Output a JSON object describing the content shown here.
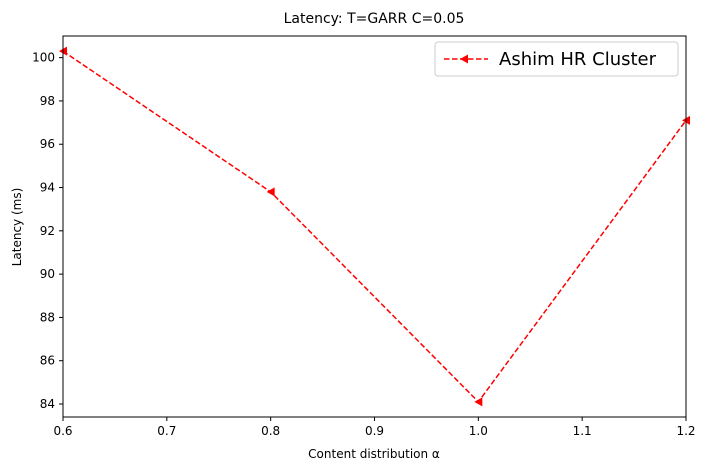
{
  "chart_data": {
    "type": "line",
    "title": "Latency: T=GARR C=0.05",
    "xlabel": "Content distribution α",
    "ylabel": "Latency (ms)",
    "xlim": [
      0.6,
      1.2
    ],
    "ylim": [
      83.4,
      101.0
    ],
    "xticks": [
      "0.6",
      "0.7",
      "0.8",
      "0.9",
      "1.0",
      "1.1",
      "1.2"
    ],
    "yticks": [
      "84",
      "86",
      "88",
      "90",
      "92",
      "94",
      "96",
      "98",
      "100"
    ],
    "grid": false,
    "legend_position": "top-right",
    "series": [
      {
        "name": "Ashim HR Cluster",
        "color": "#ff0000",
        "line_style": "dashed",
        "marker": "left-triangle",
        "x": [
          0.6,
          0.8,
          1.0,
          1.2
        ],
        "y": [
          100.3,
          93.8,
          84.1,
          97.1
        ]
      }
    ]
  }
}
